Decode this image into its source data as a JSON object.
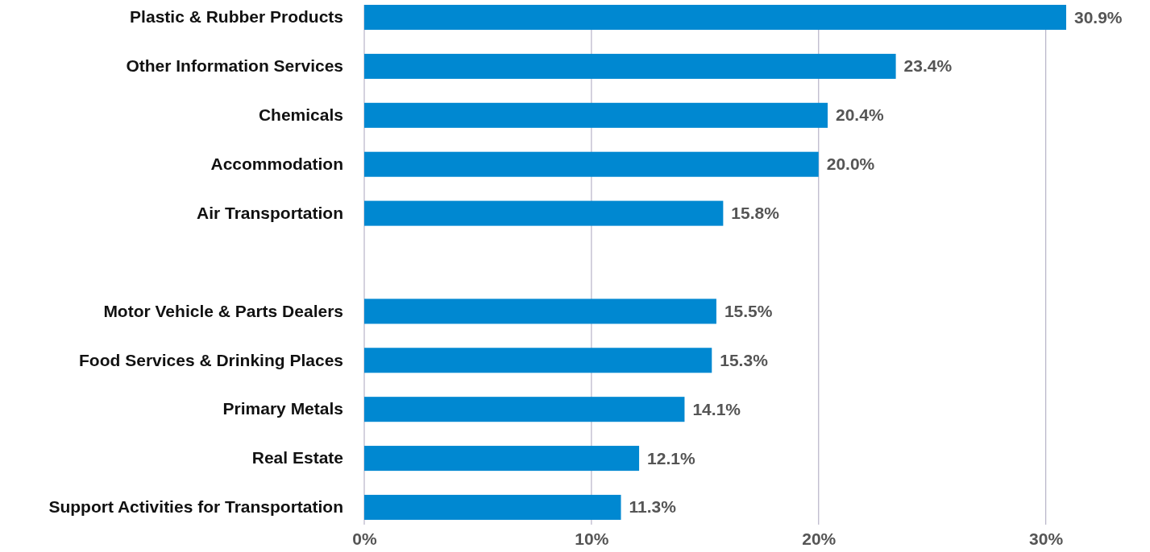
{
  "chart_data": {
    "type": "bar",
    "orientation": "horizontal",
    "categories": [
      "Plastic & Rubber Products",
      "Other Information Services",
      "Chemicals",
      "Accommodation",
      "Air Transportation",
      null,
      "Motor Vehicle & Parts Dealers",
      "Food Services & Drinking Places",
      "Primary Metals",
      "Real Estate",
      "Support Activities for Transportation"
    ],
    "values": [
      30.9,
      23.4,
      20.4,
      20.0,
      15.8,
      null,
      15.5,
      15.3,
      14.1,
      12.1,
      11.3
    ],
    "value_labels": [
      "30.9%",
      "23.4%",
      "20.4%",
      "20.0%",
      "15.8%",
      null,
      "15.5%",
      "15.3%",
      "14.1%",
      "12.1%",
      "11.3%"
    ],
    "color": "#0088d1",
    "xlim": [
      0,
      30.9
    ],
    "xticks": [
      {
        "value": 0,
        "label": "0%"
      },
      {
        "value": 10,
        "label": "10%"
      },
      {
        "value": 20,
        "label": "20%"
      },
      {
        "value": 30,
        "label": "30%"
      }
    ],
    "grid": "x"
  }
}
